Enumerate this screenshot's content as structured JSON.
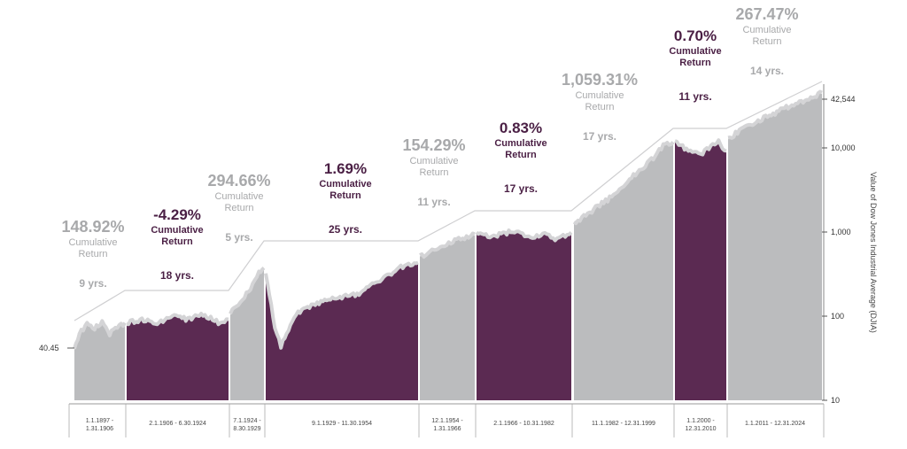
{
  "chart_data": {
    "type": "area",
    "ylabel": "Value of Dow Jones Industrial Average (DJIA)",
    "y_scale": "log",
    "y_ticks": [
      10,
      100,
      1000,
      10000
    ],
    "y_tick_labels": [
      "10",
      "100",
      "1,000",
      "10,000"
    ],
    "start_label": "40.45",
    "end_label": "42,544",
    "start_value": 40.45,
    "end_value": 42544,
    "colors": {
      "bull": "#bbbcbe",
      "bear": "#5b2a52",
      "bull_text": "#a8a9ab",
      "bear_text": "#4a1f44",
      "line": "#d4d4d6"
    },
    "periods": [
      {
        "range": "1.1.1897 - 1.31.1906",
        "kind": "bull",
        "pct": "148.92%",
        "label": "Cumulative Return",
        "years": "9 yrs."
      },
      {
        "range": "2.1.1906 - 6.30.1924",
        "kind": "bear",
        "pct": "-4.29%",
        "label": "Cumulative Return",
        "years": "18 yrs."
      },
      {
        "range": "7.1.1924 - 8.30.1929",
        "kind": "bull",
        "pct": "294.66%",
        "label": "Cumulative Return",
        "years": "5 yrs."
      },
      {
        "range": "9.1.1929 - 11.30.1954",
        "kind": "bear",
        "pct": "1.69%",
        "label": "Cumulative Return",
        "years": "25 yrs."
      },
      {
        "range": "12.1.1954 - 1.31.1966",
        "kind": "bull",
        "pct": "154.29%",
        "label": "Cumulative Return",
        "years": "11 yrs."
      },
      {
        "range": "2.1.1966 - 10.31.1982",
        "kind": "bear",
        "pct": "0.83%",
        "label": "Cumulative Return",
        "years": "17 yrs."
      },
      {
        "range": "11.1.1982 - 12.31.1999",
        "kind": "bull",
        "pct": "1,059.31%",
        "label": "Cumulative Return",
        "years": "17 yrs."
      },
      {
        "range": "1.1.2000 - 12.31.2010",
        "kind": "bear",
        "pct": "0.70%",
        "label": "Cumulative Return",
        "years": "11 yrs."
      },
      {
        "range": "1.1.2011 - 12.31.2024",
        "kind": "bull",
        "pct": "267.47%",
        "label": "Cumulative Return",
        "years": "14 yrs."
      }
    ]
  }
}
